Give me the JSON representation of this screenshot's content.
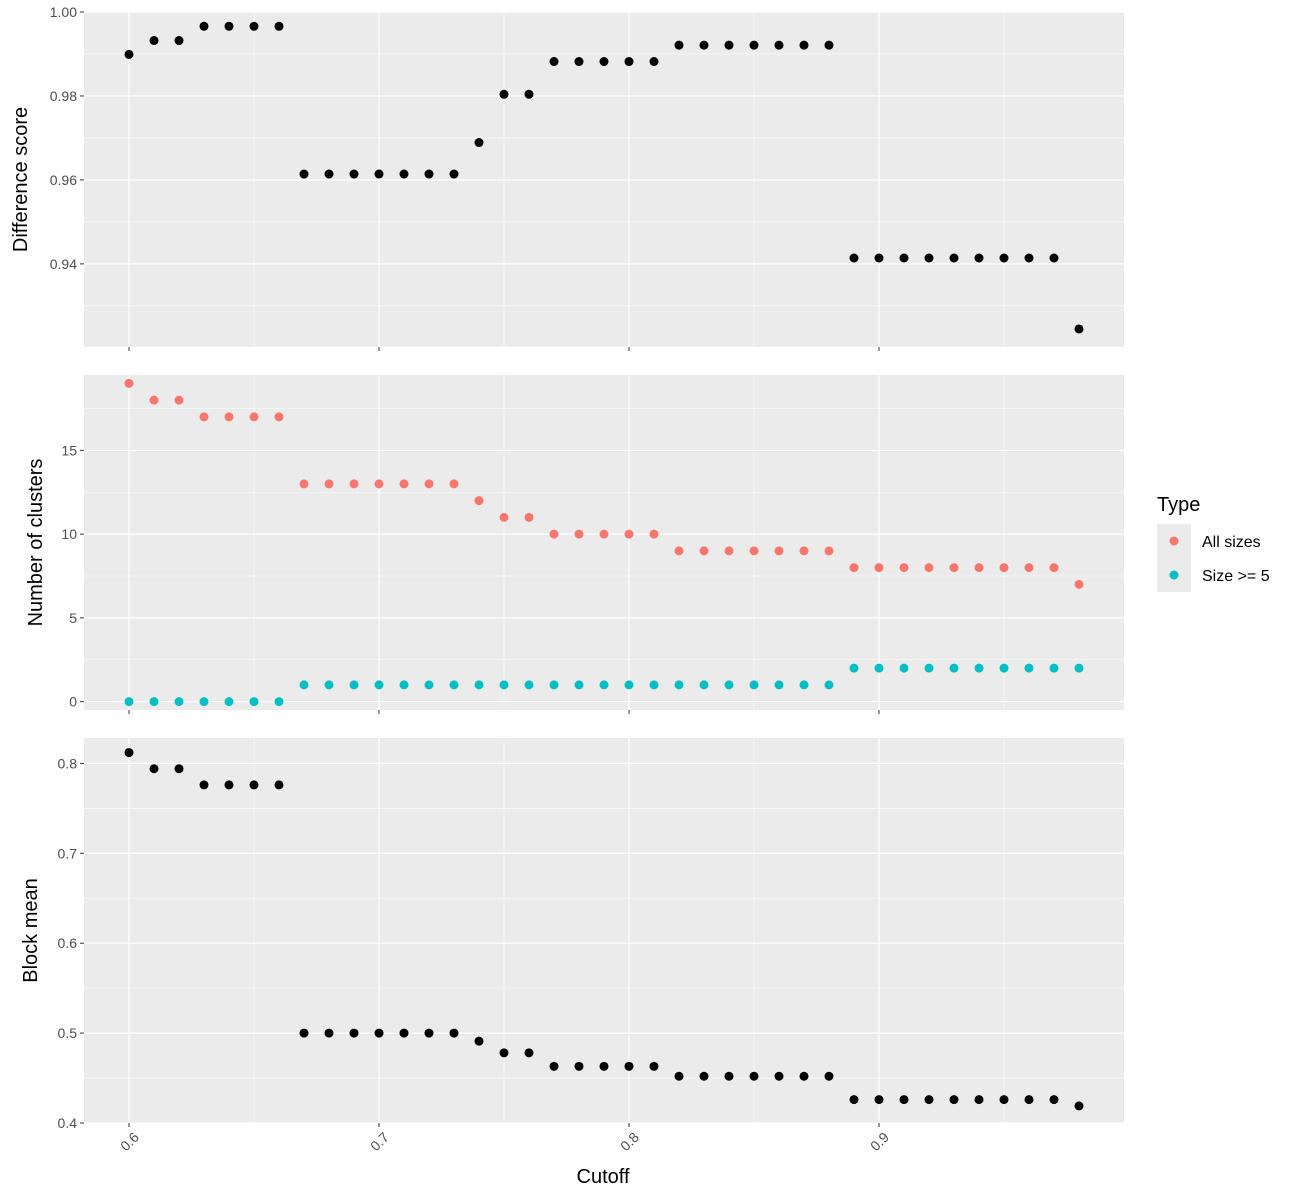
{
  "colors": {
    "panel_bg": "#EBEBEB",
    "grid": "#FFFFFF",
    "tick": "#333333",
    "tick_label": "#4D4D4D",
    "points_black": "#000000",
    "all_sizes": "#F8766D",
    "size_ge_5": "#00BFC4"
  },
  "xaxis": {
    "title": "Cutoff",
    "lim": [
      0.582,
      0.998
    ],
    "ticks": [
      0.6,
      0.7,
      0.8,
      0.9
    ],
    "tick_labels": [
      "0.6",
      "0.7",
      "0.8",
      "0.9"
    ],
    "minor_ticks": [
      0.65,
      0.75,
      0.85,
      0.95
    ],
    "tick_label_rotation": -45
  },
  "legend": {
    "title": "Type",
    "items": [
      {
        "label": "All sizes",
        "color": "#F8766D"
      },
      {
        "label": "Size >= 5",
        "color": "#00BFC4"
      }
    ]
  },
  "chart_data": [
    {
      "type": "scatter",
      "ylabel": "Difference score",
      "ylim": [
        0.9202,
        1.0
      ],
      "yticks": [
        0.94,
        0.96,
        0.98,
        1.0
      ],
      "ytick_labels": [
        "0.94",
        "0.96",
        "0.98",
        "1.00"
      ],
      "yminor": [
        0.93,
        0.95,
        0.97,
        0.99
      ],
      "series": [
        {
          "color": "#000000",
          "x": [
            0.6,
            0.61,
            0.62,
            0.63,
            0.64,
            0.65,
            0.66,
            0.67,
            0.68,
            0.69,
            0.7,
            0.71,
            0.72,
            0.73,
            0.74,
            0.75,
            0.76,
            0.77,
            0.78,
            0.79,
            0.8,
            0.81,
            0.82,
            0.83,
            0.84,
            0.85,
            0.86,
            0.87,
            0.88,
            0.89,
            0.9,
            0.91,
            0.92,
            0.93,
            0.94,
            0.95,
            0.96,
            0.97,
            0.98
          ],
          "y": [
            0.9899,
            0.9932,
            0.9932,
            0.9966,
            0.9966,
            0.9966,
            0.9966,
            0.9614,
            0.9614,
            0.9614,
            0.9614,
            0.9614,
            0.9614,
            0.9614,
            0.9689,
            0.9804,
            0.9804,
            0.9882,
            0.9882,
            0.9882,
            0.9882,
            0.9882,
            0.9921,
            0.9921,
            0.9921,
            0.9921,
            0.9921,
            0.9921,
            0.9921,
            0.9414,
            0.9414,
            0.9414,
            0.9414,
            0.9414,
            0.9414,
            0.9414,
            0.9414,
            0.9414,
            0.9245
          ]
        }
      ]
    },
    {
      "type": "scatter",
      "ylabel": "Number of clusters",
      "ylim": [
        -0.5,
        19.5
      ],
      "yticks": [
        0,
        5,
        10,
        15
      ],
      "ytick_labels": [
        "0",
        "5",
        "10",
        "15"
      ],
      "yminor": [
        2.5,
        7.5,
        12.5,
        17.5
      ],
      "series": [
        {
          "name": "All sizes",
          "color": "#F8766D",
          "x": [
            0.6,
            0.61,
            0.62,
            0.63,
            0.64,
            0.65,
            0.66,
            0.67,
            0.68,
            0.69,
            0.7,
            0.71,
            0.72,
            0.73,
            0.74,
            0.75,
            0.76,
            0.77,
            0.78,
            0.79,
            0.8,
            0.81,
            0.82,
            0.83,
            0.84,
            0.85,
            0.86,
            0.87,
            0.88,
            0.89,
            0.9,
            0.91,
            0.92,
            0.93,
            0.94,
            0.95,
            0.96,
            0.97,
            0.98
          ],
          "y": [
            19,
            18,
            18,
            17,
            17,
            17,
            17,
            13,
            13,
            13,
            13,
            13,
            13,
            13,
            12,
            11,
            11,
            10,
            10,
            10,
            10,
            10,
            9,
            9,
            9,
            9,
            9,
            9,
            9,
            8,
            8,
            8,
            8,
            8,
            8,
            8,
            8,
            8,
            7
          ]
        },
        {
          "name": "Size >= 5",
          "color": "#00BFC4",
          "x": [
            0.6,
            0.61,
            0.62,
            0.63,
            0.64,
            0.65,
            0.66,
            0.67,
            0.68,
            0.69,
            0.7,
            0.71,
            0.72,
            0.73,
            0.74,
            0.75,
            0.76,
            0.77,
            0.78,
            0.79,
            0.8,
            0.81,
            0.82,
            0.83,
            0.84,
            0.85,
            0.86,
            0.87,
            0.88,
            0.89,
            0.9,
            0.91,
            0.92,
            0.93,
            0.94,
            0.95,
            0.96,
            0.97,
            0.98
          ],
          "y": [
            0,
            0,
            0,
            0,
            0,
            0,
            0,
            1,
            1,
            1,
            1,
            1,
            1,
            1,
            1,
            1,
            1,
            1,
            1,
            1,
            1,
            1,
            1,
            1,
            1,
            1,
            1,
            1,
            1,
            2,
            2,
            2,
            2,
            2,
            2,
            2,
            2,
            2,
            2
          ]
        }
      ]
    },
    {
      "type": "scatter",
      "ylabel": "Block mean",
      "ylim": [
        0.4,
        0.8282
      ],
      "yticks": [
        0.4,
        0.5,
        0.6,
        0.7,
        0.8
      ],
      "ytick_labels": [
        "0.4",
        "0.5",
        "0.6",
        "0.7",
        "0.8"
      ],
      "yminor": [
        0.45,
        0.55,
        0.65,
        0.75
      ],
      "series": [
        {
          "color": "#000000",
          "x": [
            0.6,
            0.61,
            0.62,
            0.63,
            0.64,
            0.65,
            0.66,
            0.67,
            0.68,
            0.69,
            0.7,
            0.71,
            0.72,
            0.73,
            0.74,
            0.75,
            0.76,
            0.77,
            0.78,
            0.79,
            0.8,
            0.81,
            0.82,
            0.83,
            0.84,
            0.85,
            0.86,
            0.87,
            0.88,
            0.89,
            0.9,
            0.91,
            0.92,
            0.93,
            0.94,
            0.95,
            0.96,
            0.97,
            0.98
          ],
          "y": [
            0.812,
            0.794,
            0.794,
            0.776,
            0.776,
            0.776,
            0.776,
            0.5,
            0.5,
            0.5,
            0.5,
            0.5,
            0.5,
            0.5,
            0.491,
            0.478,
            0.478,
            0.463,
            0.463,
            0.463,
            0.463,
            0.463,
            0.452,
            0.452,
            0.452,
            0.452,
            0.452,
            0.452,
            0.452,
            0.426,
            0.426,
            0.426,
            0.426,
            0.426,
            0.426,
            0.426,
            0.426,
            0.426,
            0.419
          ]
        }
      ]
    }
  ]
}
